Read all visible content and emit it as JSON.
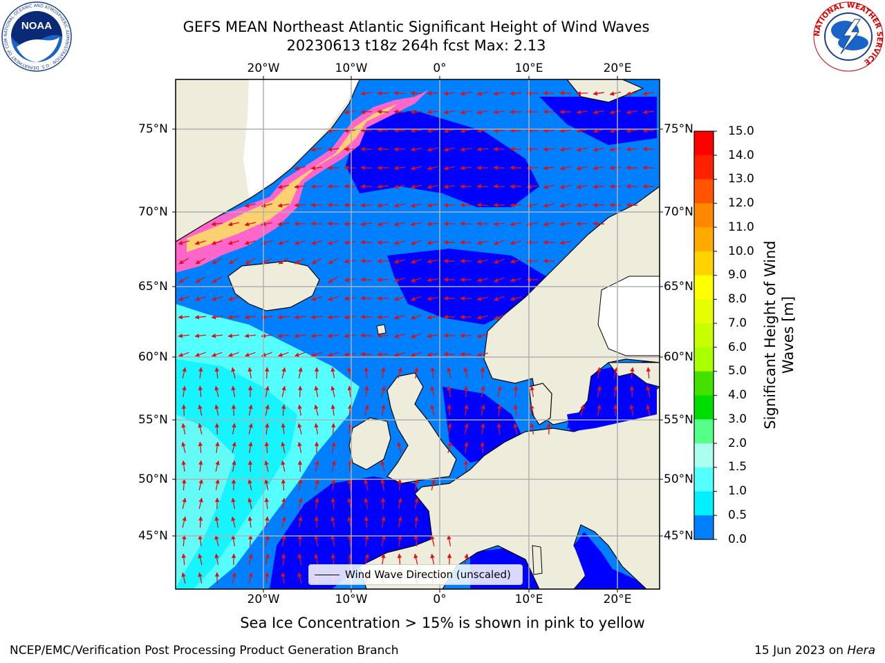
{
  "header": {
    "title_line1": "GEFS MEAN Northeast Atlantic Significant Height of Wind Waves",
    "title_line2": "20230613 t18z 264h fcst   Max: 2.13"
  },
  "logos": {
    "noaa_text": "NOAA",
    "noaa_ring_text": "NATIONAL OCEANIC AND ATMOSPHERIC ADMINISTRATION · U.S. DEPARTMENT OF COMMERCE",
    "nws_ring_text": "NATIONAL WEATHER SERVICE"
  },
  "map": {
    "lon_labels": [
      "20°W",
      "10°W",
      "0°",
      "10°E",
      "20°E"
    ],
    "lat_labels": [
      "75°N",
      "70°N",
      "65°N",
      "60°N",
      "55°N",
      "50°N",
      "45°N"
    ],
    "colors": {
      "land": "#eeeddc",
      "ice_free_land": "#ffffff",
      "gridline": "#b0b0b0",
      "arrow": "#e01010"
    },
    "legend_label": "Wind Wave Direction (unscaled)"
  },
  "colorbar": {
    "title_line1": "Significant Height of Wind",
    "title_line2": "Waves [m]",
    "ticks": [
      "15.0",
      "14.0",
      "13.0",
      "12.0",
      "11.0",
      "10.0",
      "9.0",
      "8.0",
      "7.0",
      "6.0",
      "5.0",
      "4.0",
      "3.0",
      "2.0",
      "1.5",
      "1.0",
      "0.5",
      "0.0"
    ],
    "colors": [
      "#ff0000",
      "#ff2200",
      "#ff5500",
      "#ff8800",
      "#ffaa00",
      "#ffd200",
      "#ffff00",
      "#e6ff00",
      "#c8ff00",
      "#aaff00",
      "#44e000",
      "#00dd00",
      "#55ff88",
      "#aaffee",
      "#55ffff",
      "#00f0ff",
      "#0080ff",
      "#0000ff"
    ]
  },
  "footer": {
    "note": "Sea Ice Concentration > 15% is shown in pink to yellow",
    "left": "NCEP/EMC/Verification Post Processing Product Generation Branch",
    "right_prefix": "15 Jun 2023 on ",
    "right_machine": "Hera"
  }
}
